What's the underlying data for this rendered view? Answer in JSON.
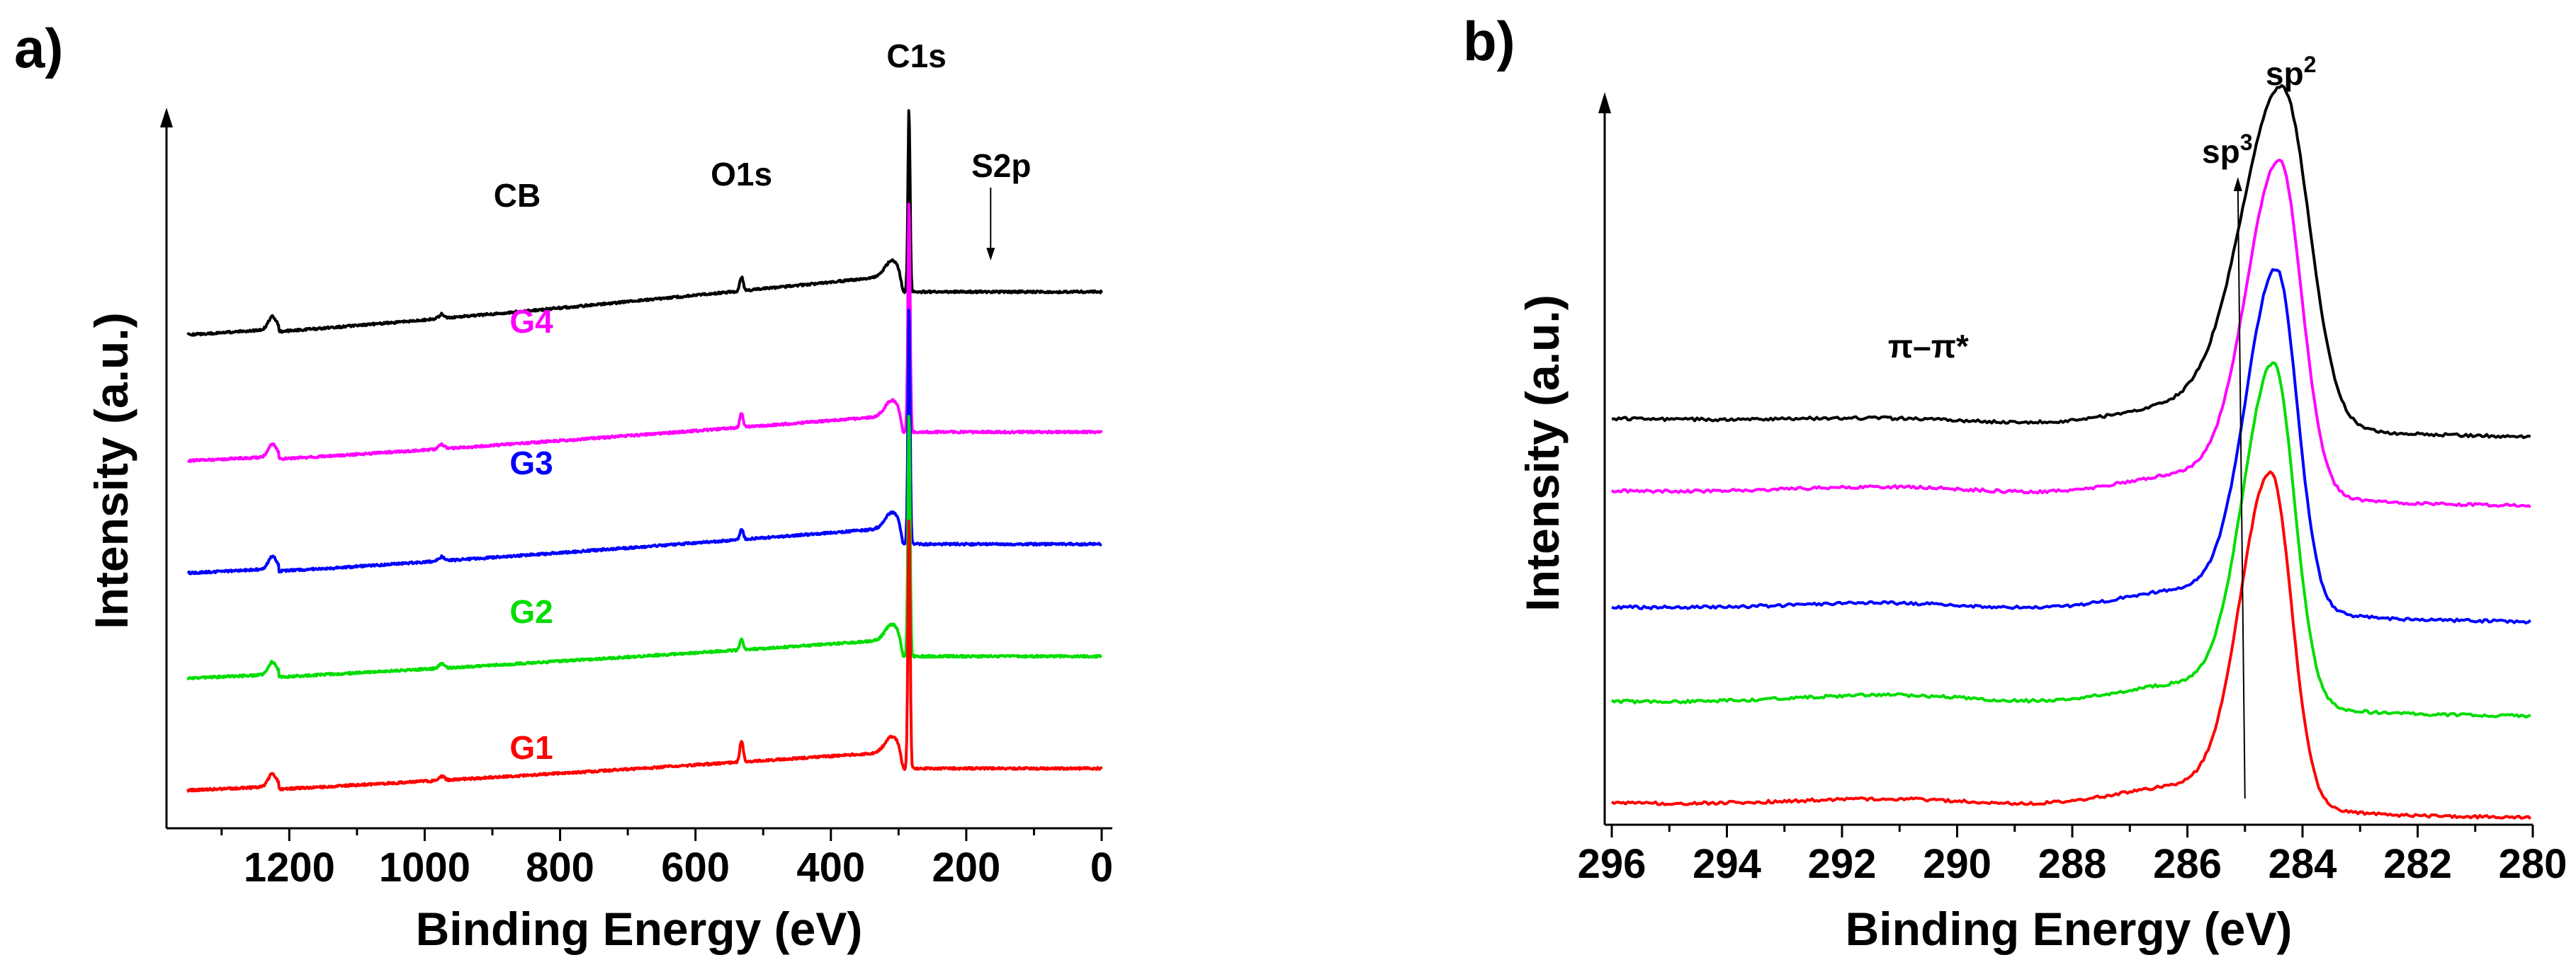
{
  "chart_data": [
    {
      "panel": "a)",
      "type": "line",
      "title": "",
      "xlabel": "Binding Energy (eV)",
      "ylabel": "Intensity (a.u.)",
      "xlim": [
        1360,
        -10
      ],
      "x_reversed": true,
      "x_ticks": [
        1200,
        1000,
        800,
        600,
        400,
        200,
        0
      ],
      "x_tick_labels": [
        "1200",
        "1000",
        "800",
        "600",
        "400",
        "200",
        "0"
      ],
      "y_ticks_shown": false,
      "annotations": [
        {
          "text": "C1s",
          "x": 284
        },
        {
          "text": "O1s",
          "x": 532
        },
        {
          "text": "S2p",
          "x": 164,
          "arrow": true
        },
        {
          "text": "CB",
          "series": "CB"
        }
      ],
      "series": [
        {
          "name": "CB",
          "color": "#000000",
          "baseline_low": 0.66,
          "baseline_high": 0.75,
          "c1s_peak": 1.0,
          "o1s_height": 0.02
        },
        {
          "name": "G4",
          "color": "#ff00ff",
          "baseline_low": 0.48,
          "baseline_high": 0.55,
          "c1s_peak": 0.87,
          "o1s_height": 0.02
        },
        {
          "name": "G3",
          "color": "#0000ff",
          "baseline_low": 0.32,
          "baseline_high": 0.39,
          "c1s_peak": 0.72,
          "o1s_height": 0.015
        },
        {
          "name": "G2",
          "color": "#00dd00",
          "baseline_low": 0.17,
          "baseline_high": 0.23,
          "c1s_peak": 0.57,
          "o1s_height": 0.015
        },
        {
          "name": "G1",
          "color": "#ff0000",
          "baseline_low": 0.01,
          "baseline_high": 0.07,
          "c1s_peak": 0.42,
          "o1s_height": 0.03
        }
      ]
    },
    {
      "panel": "b)",
      "type": "line",
      "title": "",
      "xlabel": "Binding Energy (eV)",
      "ylabel": "Intensity (a.u.)",
      "xlim": [
        296,
        280
      ],
      "x_reversed": true,
      "x_ticks": [
        296,
        294,
        292,
        290,
        288,
        286,
        284,
        282,
        280
      ],
      "x_tick_labels": [
        "296",
        "294",
        "292",
        "290",
        "288",
        "286",
        "284",
        "282",
        "280"
      ],
      "y_ticks_shown": false,
      "annotations": [
        {
          "text": "sp2",
          "base": "sp",
          "sup": "2",
          "x": 284.3
        },
        {
          "text": "sp3",
          "base": "sp",
          "sup": "3",
          "x": 285.0,
          "arrow": true
        },
        {
          "text": "π–π*",
          "x": 290.5
        }
      ],
      "series": [
        {
          "name": "CB",
          "color": "#000000",
          "baseline_left": 0.55,
          "baseline_right": 0.525,
          "peak_center": 284.35,
          "peak_height": 0.98,
          "sigma": 0.55,
          "pi_bump": 0.008
        },
        {
          "name": "G4",
          "color": "#ff00ff",
          "baseline_left": 0.45,
          "baseline_right": 0.43,
          "peak_center": 284.4,
          "peak_height": 0.88,
          "sigma": 0.45,
          "pi_bump": 0.012
        },
        {
          "name": "G3",
          "color": "#0000ff",
          "baseline_left": 0.29,
          "baseline_right": 0.27,
          "peak_center": 284.45,
          "peak_height": 0.73,
          "sigma": 0.42,
          "pi_bump": 0.012
        },
        {
          "name": "G2",
          "color": "#00dd00",
          "baseline_left": 0.16,
          "baseline_right": 0.14,
          "peak_center": 284.5,
          "peak_height": 0.6,
          "sigma": 0.42,
          "pi_bump": 0.015
        },
        {
          "name": "G1",
          "color": "#ff0000",
          "baseline_left": 0.02,
          "baseline_right": 0.0,
          "peak_center": 284.55,
          "peak_height": 0.45,
          "sigma": 0.42,
          "pi_bump": 0.012
        }
      ]
    }
  ]
}
